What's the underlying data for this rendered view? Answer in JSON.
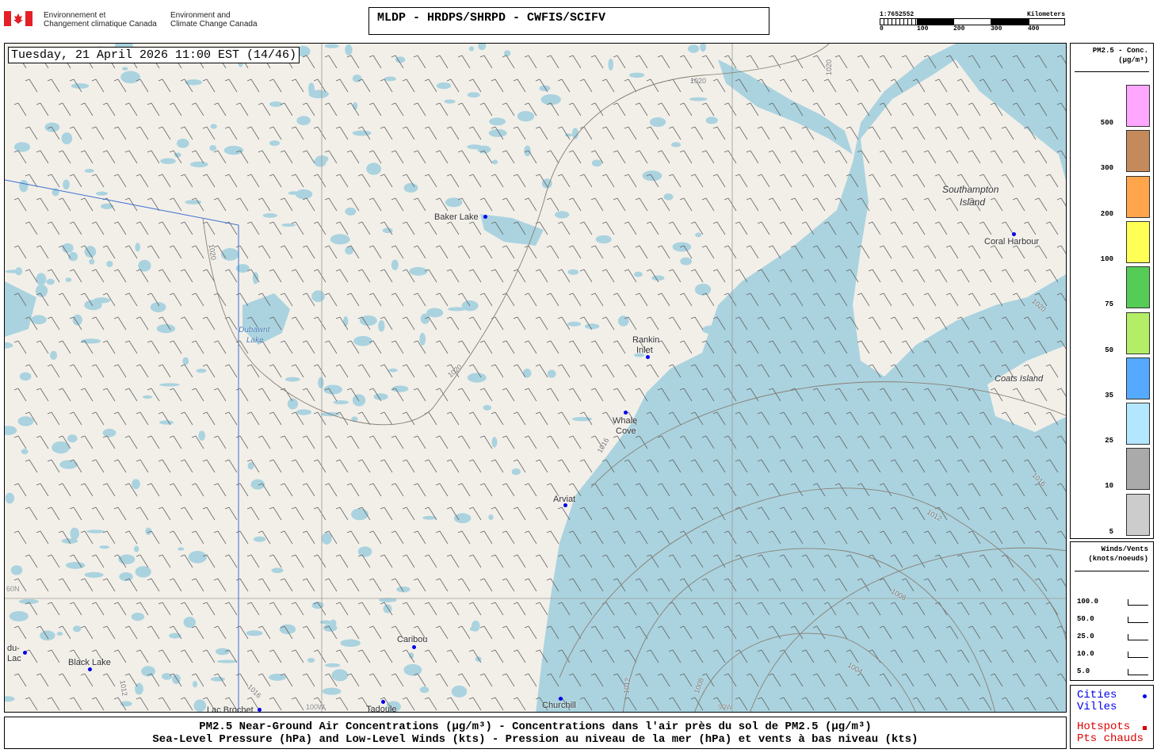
{
  "header": {
    "org_fr": [
      "Environnement et",
      "Changement climatique Canada"
    ],
    "org_en": [
      "Environment and",
      "Climate Change Canada"
    ],
    "title": "MLDP - HRDPS/SHRPD - CWFIS/SCIFV"
  },
  "scale": {
    "ratio": "1:7652552",
    "unit": "Kilometers",
    "ticks": [
      "0",
      "100",
      "200",
      "300",
      "400"
    ]
  },
  "map": {
    "datetime": "Tuesday, 21 April 2026 11:00 EST (14/46)",
    "colors": {
      "land": "#f2efe9",
      "water": "#aad3df",
      "isobar": "#8a7f74",
      "border": "#3b6fd0",
      "city": "#0000ee"
    },
    "places": [
      "Baker Lake",
      "Rankin",
      "Inlet",
      "Whale",
      "Cove",
      "Arviat",
      "Caribou",
      "Black Lake",
      "Churchill",
      "Tadoule",
      "Lac Brochet",
      "du-",
      "Lac",
      "Coral Harbour",
      "Southampton",
      "Island",
      "Coats Island",
      "Dubawnt",
      "Lake"
    ],
    "grid_labels": [
      "60N",
      "100W",
      "90W"
    ],
    "isobars": [
      "1020",
      "1020",
      "1020",
      "1020",
      "1016",
      "1016",
      "1016",
      "1012",
      "1012",
      "1012",
      "1008",
      "1008",
      "1004",
      "1020"
    ]
  },
  "legend": {
    "title": "PM2.5 - Conc.",
    "unit": "(µg/m³)",
    "levels": [
      {
        "label": "500",
        "color": "#ffa6ff"
      },
      {
        "label": "300",
        "color": "#c58a5c"
      },
      {
        "label": "200",
        "color": "#ffa64d"
      },
      {
        "label": "100",
        "color": "#ffff55"
      },
      {
        "label": "75",
        "color": "#55cc55"
      },
      {
        "label": "50",
        "color": "#b3ee66"
      },
      {
        "label": "35",
        "color": "#55aaff"
      },
      {
        "label": "25",
        "color": "#b3e6ff"
      },
      {
        "label": "10",
        "color": "#aaaaaa"
      },
      {
        "label": "5",
        "color": "#cccccc"
      }
    ]
  },
  "winds": {
    "title": "Winds/Vents",
    "unit": "(knots/noeuds)",
    "speeds": [
      "100.0",
      "50.0",
      "25.0",
      "10.0",
      "5.0"
    ]
  },
  "symbols": {
    "cities": "Cities",
    "villes": "Villes",
    "hotspots": "Hotspots",
    "pts": "Pts chauds",
    "city_color": "#0000ee",
    "hotspot_color": "#dd0000"
  },
  "caption": {
    "line1": "PM2.5 Near-Ground Air Concentrations (µg/m³) - Concentrations dans l'air près du sol de PM2.5 (µg/m³)",
    "line2": "Sea-Level Pressure (hPa) and Low-Level Winds (kts) - Pression au niveau de la mer (hPa) et vents à bas niveau (kts)"
  }
}
